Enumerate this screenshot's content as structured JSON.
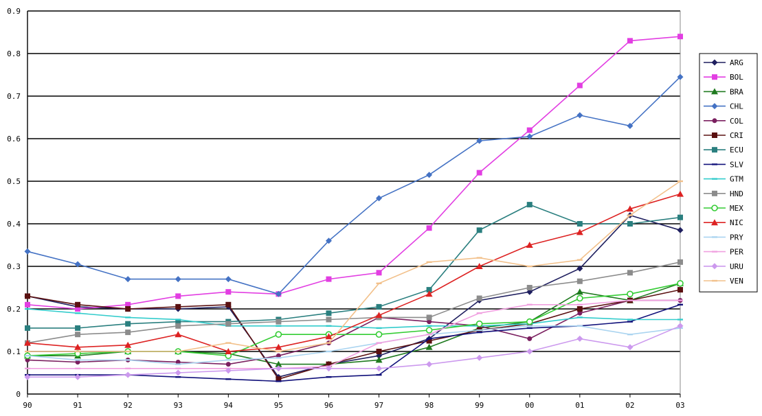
{
  "chart_data": {
    "type": "line",
    "title": "",
    "xlabel": "",
    "ylabel": "",
    "ylim": [
      0,
      0.9
    ],
    "yticks": [
      "0",
      "0.1",
      "0.2",
      "0.3",
      "0.4",
      "0.5",
      "0.6",
      "0.7",
      "0.8",
      "0.9"
    ],
    "categories": [
      "90",
      "91",
      "92",
      "93",
      "94",
      "95",
      "96",
      "97",
      "98",
      "99",
      "00",
      "01",
      "02",
      "03"
    ],
    "grid": "horizontal",
    "legend_position": "right",
    "series": [
      {
        "name": "ARG",
        "color": "#1f1f5f",
        "marker": "diamond",
        "values": [
          0.23,
          0.205,
          0.2,
          0.2,
          0.205,
          0.04,
          0.07,
          0.09,
          0.13,
          0.22,
          0.24,
          0.295,
          0.42,
          0.385
        ]
      },
      {
        "name": "BOL",
        "color": "#e23ee2",
        "marker": "square",
        "values": [
          0.21,
          0.2,
          0.21,
          0.23,
          0.24,
          0.235,
          0.27,
          0.285,
          0.39,
          0.52,
          0.62,
          0.725,
          0.83,
          0.84
        ]
      },
      {
        "name": "BRA",
        "color": "#1f7a1f",
        "marker": "triangle",
        "values": [
          0.09,
          0.09,
          0.1,
          0.1,
          0.095,
          0.07,
          0.07,
          0.08,
          0.11,
          0.155,
          0.17,
          0.24,
          0.22,
          0.26
        ]
      },
      {
        "name": "CHL",
        "color": "#4472c4",
        "marker": "diamond",
        "values": [
          0.335,
          0.305,
          0.27,
          0.27,
          0.27,
          0.235,
          0.36,
          0.46,
          0.515,
          0.595,
          0.605,
          0.655,
          0.63,
          0.745
        ]
      },
      {
        "name": "COL",
        "color": "#7a1f5f",
        "marker": "circle",
        "values": [
          0.08,
          0.075,
          0.08,
          0.075,
          0.07,
          0.09,
          0.12,
          0.18,
          0.17,
          0.16,
          0.13,
          0.19,
          0.22,
          0.22
        ]
      },
      {
        "name": "CRI",
        "color": "#5a1010",
        "marker": "square",
        "values": [
          0.23,
          0.21,
          0.2,
          0.205,
          0.21,
          0.035,
          0.07,
          0.1,
          0.125,
          0.15,
          0.165,
          0.2,
          0.22,
          0.245
        ]
      },
      {
        "name": "ECU",
        "color": "#2a7f7f",
        "marker": "square",
        "values": [
          0.155,
          0.155,
          0.165,
          0.17,
          0.17,
          0.175,
          0.19,
          0.205,
          0.245,
          0.385,
          0.445,
          0.4,
          0.4,
          0.415
        ]
      },
      {
        "name": "SLV",
        "color": "#10107a",
        "marker": "dash",
        "values": [
          0.045,
          0.045,
          0.045,
          0.04,
          0.035,
          0.03,
          0.04,
          0.045,
          0.13,
          0.145,
          0.155,
          0.16,
          0.17,
          0.21
        ]
      },
      {
        "name": "GTM",
        "color": "#33cccc",
        "marker": "dash",
        "values": [
          0.2,
          0.19,
          0.18,
          0.175,
          0.16,
          0.16,
          0.16,
          0.155,
          0.16,
          0.16,
          0.165,
          0.18,
          0.175,
          0.175
        ]
      },
      {
        "name": "HND",
        "color": "#8c8c8c",
        "marker": "square",
        "values": [
          0.12,
          0.14,
          0.145,
          0.16,
          0.165,
          0.17,
          0.175,
          0.18,
          0.18,
          0.225,
          0.25,
          0.265,
          0.285,
          0.31
        ]
      },
      {
        "name": "MEX",
        "color": "#33cc33",
        "marker": "circle-open",
        "values": [
          0.09,
          0.095,
          0.1,
          0.1,
          0.09,
          0.14,
          0.14,
          0.14,
          0.15,
          0.165,
          0.17,
          0.225,
          0.235,
          0.26
        ]
      },
      {
        "name": "NIC",
        "color": "#dd2222",
        "marker": "triangle",
        "values": [
          0.12,
          0.11,
          0.115,
          0.14,
          0.1,
          0.11,
          0.135,
          0.185,
          0.235,
          0.3,
          0.35,
          0.38,
          0.435,
          0.47
        ]
      },
      {
        "name": "PRY",
        "color": "#aad4f0",
        "marker": "dash",
        "values": [
          0.09,
          0.08,
          0.08,
          0.07,
          0.08,
          0.085,
          0.1,
          0.12,
          0.14,
          0.15,
          0.16,
          0.16,
          0.14,
          0.155
        ]
      },
      {
        "name": "PER",
        "color": "#f0a0e0",
        "marker": "dash",
        "values": [
          0.06,
          0.06,
          0.06,
          0.06,
          0.06,
          0.06,
          0.065,
          0.12,
          0.14,
          0.19,
          0.21,
          0.21,
          0.22,
          0.22
        ]
      },
      {
        "name": "URU",
        "color": "#cc99ee",
        "marker": "diamond",
        "values": [
          0.04,
          0.04,
          0.045,
          0.05,
          0.055,
          0.06,
          0.06,
          0.06,
          0.07,
          0.085,
          0.1,
          0.13,
          0.11,
          0.16
        ]
      },
      {
        "name": "VEN",
        "color": "#f2c08a",
        "marker": "dash",
        "values": [
          0.1,
          0.1,
          0.1,
          0.1,
          0.12,
          0.1,
          0.12,
          0.26,
          0.31,
          0.32,
          0.3,
          0.315,
          0.42,
          0.5
        ]
      }
    ]
  }
}
